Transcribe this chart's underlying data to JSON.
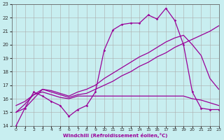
{
  "xlabel": "Windchill (Refroidissement éolien,°C)",
  "xlim": [
    -0.5,
    23
  ],
  "ylim": [
    14,
    23
  ],
  "xticks": [
    0,
    1,
    2,
    3,
    4,
    5,
    6,
    7,
    8,
    9,
    10,
    11,
    12,
    13,
    14,
    15,
    16,
    17,
    18,
    19,
    20,
    21,
    22,
    23
  ],
  "yticks": [
    14,
    15,
    16,
    17,
    18,
    19,
    20,
    21,
    22,
    23
  ],
  "bg_color": "#c8eef0",
  "line_color": "#990099",
  "grid_color": "#aaaaaa",
  "line1_x": [
    0,
    1,
    2,
    3,
    4,
    5,
    6,
    7,
    8,
    9,
    10,
    11,
    12,
    13,
    14,
    15,
    16,
    17,
    18,
    19,
    20,
    21,
    22,
    23
  ],
  "line1_y": [
    14.0,
    15.3,
    16.5,
    16.2,
    15.8,
    15.5,
    14.7,
    15.2,
    15.5,
    16.5,
    19.6,
    21.1,
    21.5,
    21.6,
    21.6,
    22.2,
    21.9,
    22.7,
    21.8,
    20.0,
    16.5,
    15.3,
    15.2,
    15.2
  ],
  "line2_x": [
    0,
    1,
    2,
    3,
    4,
    5,
    6,
    7,
    8,
    9,
    10,
    11,
    12,
    13,
    14,
    15,
    16,
    17,
    18,
    19,
    20,
    21,
    22,
    23
  ],
  "line2_y": [
    15.0,
    15.6,
    16.3,
    16.7,
    16.6,
    16.4,
    16.2,
    16.5,
    16.7,
    17.0,
    17.5,
    17.9,
    18.3,
    18.7,
    19.1,
    19.4,
    19.8,
    20.2,
    20.5,
    20.7,
    20.0,
    19.2,
    17.5,
    16.7
  ],
  "line3_x": [
    0,
    1,
    2,
    3,
    4,
    5,
    6,
    7,
    8,
    9,
    10,
    11,
    12,
    13,
    14,
    15,
    16,
    17,
    18,
    19,
    20,
    21,
    22,
    23
  ],
  "line3_y": [
    15.0,
    15.3,
    16.0,
    16.7,
    16.5,
    16.3,
    16.1,
    16.3,
    16.4,
    16.7,
    17.0,
    17.3,
    17.7,
    18.0,
    18.4,
    18.7,
    19.1,
    19.4,
    19.8,
    20.1,
    20.4,
    20.7,
    21.0,
    21.4
  ],
  "line4_x": [
    0,
    1,
    2,
    3,
    4,
    5,
    6,
    7,
    8,
    9,
    10,
    11,
    12,
    13,
    14,
    15,
    16,
    17,
    18,
    19,
    20,
    21,
    22,
    23
  ],
  "line4_y": [
    15.5,
    15.8,
    16.3,
    16.5,
    16.3,
    16.1,
    16.0,
    16.2,
    16.2,
    16.2,
    16.2,
    16.2,
    16.2,
    16.2,
    16.2,
    16.2,
    16.2,
    16.2,
    16.2,
    16.2,
    16.0,
    15.9,
    15.7,
    15.5
  ]
}
